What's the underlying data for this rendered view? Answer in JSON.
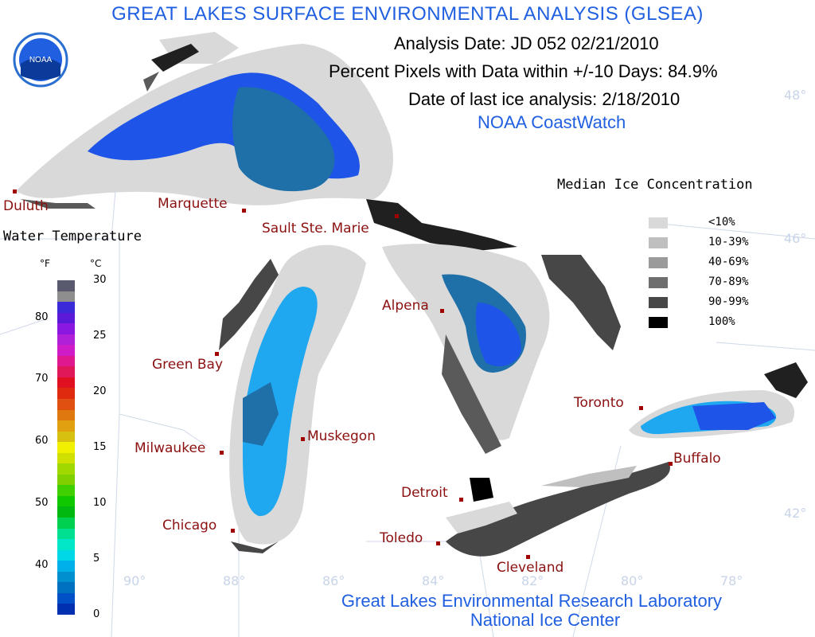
{
  "title": "GREAT LAKES SURFACE ENVIRONMENTAL ANALYSIS (GLSEA)",
  "logo_text": "NOAA",
  "analysis_date": "Analysis Date:  JD 052 02/21/2010",
  "percent_pixels": "Percent Pixels with Data within +/-10 Days:  84.9%",
  "ice_date": "Date of last ice analysis: 2/18/2010",
  "source": "NOAA CoastWatch",
  "footer_line1": "Great Lakes Environmental Research Laboratory",
  "footer_line2": "National Ice Center",
  "cities": [
    {
      "name": "Duluth"
    },
    {
      "name": "Marquette"
    },
    {
      "name": "Sault Ste. Marie"
    },
    {
      "name": "Green Bay"
    },
    {
      "name": "Milwaukee"
    },
    {
      "name": "Muskegon"
    },
    {
      "name": "Chicago"
    },
    {
      "name": "Alpena"
    },
    {
      "name": "Detroit"
    },
    {
      "name": "Toledo"
    },
    {
      "name": "Cleveland"
    },
    {
      "name": "Toronto"
    },
    {
      "name": "Buffalo"
    }
  ],
  "grid_labels": {
    "lat": [
      "48°",
      "46°",
      "42°"
    ],
    "lon": [
      "90°",
      "88°",
      "86°",
      "84°",
      "82°",
      "80°",
      "78°"
    ]
  },
  "ice_legend": {
    "title": "Median Ice Concentration",
    "items": [
      {
        "label": "<10%",
        "color": "#d9d9d9"
      },
      {
        "label": "10-39%",
        "color": "#bfbfbf"
      },
      {
        "label": "40-69%",
        "color": "#9a9a9a"
      },
      {
        "label": "70-89%",
        "color": "#6e6e6e"
      },
      {
        "label": "90-99%",
        "color": "#474747"
      },
      {
        "label": "100%",
        "color": "#000000"
      }
    ]
  },
  "temp_legend": {
    "title": "Water Temperature",
    "unit_f": "°F",
    "unit_c": "°C",
    "f_ticks": [
      "80",
      "70",
      "60",
      "50",
      "40"
    ],
    "c_ticks": [
      "30",
      "25",
      "20",
      "15",
      "10",
      "5",
      "0"
    ],
    "colors": [
      "#5a5a6e",
      "#8e8e8e",
      "#3a2ad8",
      "#5a1ad8",
      "#8a18e0",
      "#b020d8",
      "#d01cc8",
      "#e01890",
      "#e0185a",
      "#e01020",
      "#e02a10",
      "#e05010",
      "#e07810",
      "#e0a010",
      "#d8c010",
      "#f0f000",
      "#d0e000",
      "#a0d800",
      "#80d000",
      "#40d000",
      "#10c800",
      "#00b810",
      "#00d050",
      "#00e090",
      "#00e8c8",
      "#00d8e8",
      "#00b0e8",
      "#0090d0",
      "#0070c0",
      "#0050c8",
      "#0030b0"
    ]
  }
}
